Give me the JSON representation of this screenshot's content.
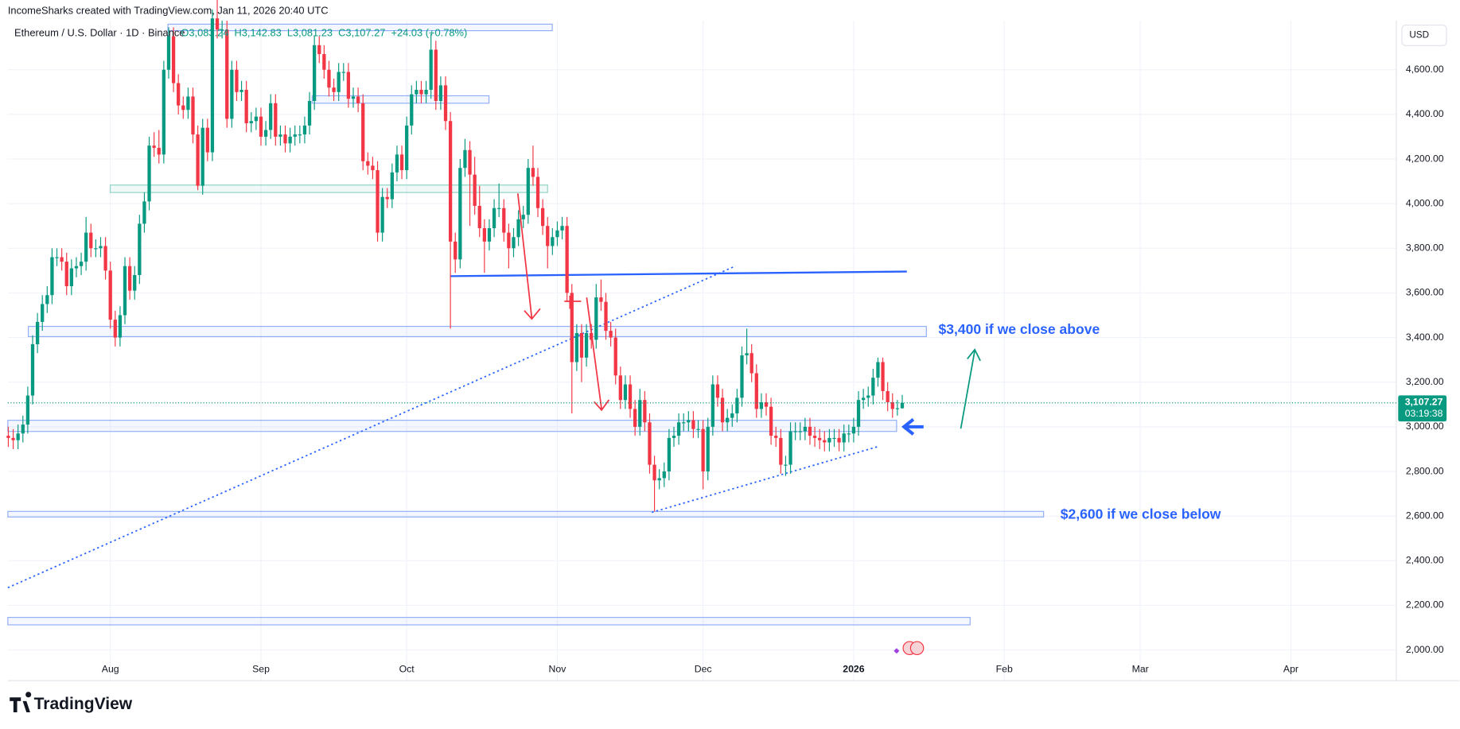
{
  "header": "IncomeSharks created with TradingView.com, Jan 11, 2026 20:40 UTC",
  "brand": "TradingView",
  "chart_data": {
    "type": "candlestick",
    "title": "Ethereum / U.S. Dollar · 1D · Binance",
    "legend_values": [
      "O3,083.24",
      "H3,142.83",
      "L3,081.23",
      "C3,107.27",
      "+24.03 (+0.78%)"
    ],
    "currency": "USD",
    "up_color": "#089981",
    "down_color": "#f23645",
    "open": [
      2960,
      2950,
      2940,
      2970,
      3010,
      3140,
      3370,
      3470,
      3550,
      3590,
      3760,
      3760,
      3740,
      3630,
      3710,
      3720,
      3740,
      3870,
      3800,
      3800,
      3810,
      3700,
      3480,
      3400,
      3500,
      3720,
      3610,
      3680,
      3910,
      4010,
      4260,
      4250,
      4220,
      4600,
      4750,
      4540,
      4440,
      4420,
      4480,
      4310,
      4080,
      4340,
      4230,
      4830,
      4780,
      4780,
      4380,
      4600,
      4500,
      4510,
      4360,
      4370,
      4390,
      4300,
      4330,
      4450,
      4300,
      4310,
      4270,
      4300,
      4310,
      4310,
      4350,
      4460,
      4710,
      4670,
      4600,
      4520,
      4500,
      4590,
      4590,
      4470,
      4480,
      4450,
      4190,
      4170,
      4150,
      3870,
      4030,
      4020,
      4140,
      4220,
      4150,
      4350,
      4490,
      4510,
      4490,
      4510,
      4690,
      4460,
      4530,
      4370,
      3830,
      3750,
      4160,
      4240,
      4130,
      3990,
      3890,
      3830,
      3890,
      3980,
      3980,
      3870,
      3800,
      3850,
      3930,
      3950,
      4160,
      4120,
      3980,
      3900,
      3810,
      3850,
      3880,
      3900,
      3600,
      3290,
      3420,
      3310,
      3420,
      3390,
      3580,
      3560,
      3430,
      3400,
      3230,
      3120,
      3190,
      3080,
      3000,
      3120,
      3020,
      2830,
      2760,
      2770,
      2800,
      2950,
      2960,
      3020,
      3020,
      3030,
      2990,
      2990,
      2800,
      3000,
      3190,
      3130,
      3020,
      3040,
      3060,
      3130,
      3320,
      3330,
      3240,
      3080,
      3110,
      3090,
      2960,
      2950,
      2830,
      2830,
      2980,
      2980,
      2980,
      3000,
      2960,
      2950,
      2940,
      2930,
      2950,
      2950,
      2930,
      2970,
      2970,
      3000,
      3120,
      3130,
      3140,
      3220,
      3290,
      3160,
      3110,
      3080,
      3083.24
    ],
    "high": [
      3000,
      2990,
      3010,
      3050,
      3180,
      3410,
      3510,
      3590,
      3630,
      3800,
      3800,
      3800,
      3780,
      3750,
      3760,
      3780,
      3940,
      3910,
      3840,
      3850,
      3850,
      3740,
      3520,
      3540,
      3760,
      3760,
      3720,
      3950,
      4050,
      4300,
      4320,
      4330,
      4640,
      4790,
      4790,
      4580,
      4480,
      4520,
      4520,
      4350,
      4380,
      4380,
      4870,
      4950,
      4820,
      4820,
      4640,
      4640,
      4550,
      4550,
      4410,
      4430,
      4430,
      4370,
      4490,
      4490,
      4350,
      4350,
      4340,
      4350,
      4350,
      4390,
      4500,
      4750,
      4750,
      4710,
      4640,
      4560,
      4630,
      4630,
      4630,
      4520,
      4520,
      4490,
      4230,
      4210,
      4190,
      4070,
      4070,
      4180,
      4260,
      4260,
      4390,
      4530,
      4550,
      4550,
      4550,
      4760,
      4730,
      4570,
      4570,
      4410,
      3870,
      4200,
      4290,
      4280,
      4210,
      4080,
      3930,
      3930,
      4020,
      4090,
      4020,
      3910,
      3890,
      3970,
      3990,
      4200,
      4260,
      4160,
      4020,
      3940,
      3890,
      3920,
      3940,
      3940,
      3640,
      3460,
      3460,
      3460,
      3460,
      3640,
      3660,
      3600,
      3470,
      3440,
      3270,
      3230,
      3230,
      3120,
      3170,
      3160,
      3060,
      2870,
      2810,
      2840,
      2990,
      3000,
      3060,
      3060,
      3070,
      3070,
      3030,
      3030,
      3040,
      3230,
      3230,
      3170,
      3080,
      3100,
      3170,
      3360,
      3440,
      3370,
      3280,
      3150,
      3150,
      3130,
      3000,
      2990,
      2870,
      3020,
      3020,
      3020,
      3040,
      3040,
      3000,
      2990,
      2980,
      2990,
      2990,
      2990,
      3010,
      3010,
      3040,
      3160,
      3170,
      3180,
      3260,
      3310,
      3310,
      3200,
      3150,
      3120,
      3142.83
    ],
    "low": [
      2910,
      2900,
      2900,
      2930,
      2970,
      3100,
      3330,
      3430,
      3510,
      3550,
      3720,
      3700,
      3590,
      3590,
      3670,
      3680,
      3700,
      3760,
      3760,
      3760,
      3660,
      3440,
      3360,
      3360,
      3460,
      3570,
      3570,
      3640,
      3870,
      3970,
      4210,
      4180,
      4180,
      4560,
      4500,
      4400,
      4380,
      4380,
      4270,
      4060,
      4040,
      4190,
      4190,
      4740,
      4740,
      4340,
      4340,
      4460,
      4460,
      4320,
      4320,
      4330,
      4260,
      4260,
      4290,
      4260,
      4260,
      4230,
      4230,
      4260,
      4270,
      4270,
      4310,
      4420,
      4630,
      4560,
      4480,
      4460,
      4460,
      4550,
      4430,
      4430,
      4410,
      4150,
      4130,
      4110,
      3830,
      3830,
      3980,
      3980,
      4100,
      4110,
      4110,
      4310,
      4450,
      4450,
      4450,
      4470,
      4420,
      4420,
      4330,
      3440,
      3690,
      3710,
      4120,
      3900,
      3950,
      3850,
      3690,
      3790,
      3850,
      3940,
      3830,
      3710,
      3760,
      3810,
      3890,
      3910,
      4080,
      3940,
      3860,
      3710,
      3770,
      3810,
      3840,
      3560,
      3060,
      3250,
      3200,
      3270,
      3350,
      3350,
      3520,
      3390,
      3360,
      3190,
      3080,
      3080,
      3040,
      2960,
      2960,
      2980,
      2790,
      2620,
      2720,
      2730,
      2760,
      2910,
      2920,
      2980,
      2980,
      2950,
      2950,
      2720,
      2760,
      2960,
      3090,
      2980,
      2980,
      3000,
      3020,
      3090,
      3280,
      3200,
      3040,
      3040,
      3050,
      2920,
      2910,
      2790,
      2780,
      2790,
      2940,
      2940,
      2940,
      2920,
      2910,
      2900,
      2890,
      2890,
      2910,
      2890,
      2890,
      2930,
      2930,
      2960,
      3080,
      3090,
      3100,
      3180,
      3120,
      3070,
      3040,
      3050,
      3081.23
    ],
    "close": [
      2950,
      2940,
      2970,
      3010,
      3140,
      3370,
      3470,
      3550,
      3590,
      3760,
      3760,
      3740,
      3630,
      3710,
      3720,
      3740,
      3870,
      3800,
      3800,
      3810,
      3700,
      3480,
      3400,
      3500,
      3720,
      3610,
      3680,
      3910,
      4010,
      4260,
      4250,
      4220,
      4600,
      4750,
      4540,
      4440,
      4420,
      4480,
      4310,
      4080,
      4340,
      4230,
      4830,
      4780,
      4780,
      4380,
      4600,
      4500,
      4510,
      4360,
      4370,
      4390,
      4300,
      4330,
      4450,
      4300,
      4310,
      4270,
      4300,
      4310,
      4310,
      4350,
      4460,
      4710,
      4670,
      4600,
      4520,
      4500,
      4590,
      4590,
      4470,
      4480,
      4450,
      4190,
      4170,
      4150,
      3870,
      4030,
      4020,
      4140,
      4220,
      4150,
      4350,
      4490,
      4510,
      4490,
      4510,
      4690,
      4460,
      4530,
      4370,
      3830,
      3750,
      4160,
      4240,
      4130,
      3990,
      3890,
      3830,
      3890,
      3980,
      3980,
      3870,
      3800,
      3850,
      3930,
      3950,
      4160,
      4120,
      3980,
      3900,
      3810,
      3850,
      3880,
      3900,
      3600,
      3290,
      3420,
      3310,
      3420,
      3390,
      3580,
      3560,
      3430,
      3400,
      3230,
      3120,
      3190,
      3080,
      3000,
      3120,
      3020,
      2830,
      2760,
      2770,
      2800,
      2950,
      2960,
      3020,
      3020,
      3030,
      2990,
      2990,
      2800,
      3000,
      3190,
      3130,
      3020,
      3040,
      3060,
      3130,
      3320,
      3330,
      3240,
      3080,
      3110,
      3090,
      2960,
      2950,
      2830,
      2830,
      2980,
      2980,
      2980,
      3000,
      2960,
      2950,
      2940,
      2930,
      2950,
      2950,
      2930,
      2970,
      2970,
      3000,
      3120,
      3130,
      3140,
      3220,
      3290,
      3160,
      3110,
      3080,
      3083.24,
      3107.27
    ],
    "last_price": {
      "value": 3107.27,
      "label": "3,107.27"
    },
    "countdown": "03:19:38",
    "xlim": [
      -0.1,
      285.7
    ],
    "xticks": [
      {
        "value": 21,
        "label": "Aug"
      },
      {
        "value": 52,
        "label": "Sep"
      },
      {
        "value": 82,
        "label": "Oct"
      },
      {
        "value": 113,
        "label": "Nov"
      },
      {
        "value": 143,
        "label": "Dec"
      },
      {
        "value": 174,
        "label": "2026"
      },
      {
        "value": 205,
        "label": "Feb"
      },
      {
        "value": 233,
        "label": "Mar"
      },
      {
        "value": 264,
        "label": "Apr"
      }
    ],
    "ylim": [
      1862.5,
      4820.8
    ],
    "yticks": [
      {
        "value": 2000,
        "label": "2,000.00"
      },
      {
        "value": 2200,
        "label": "2,200.00"
      },
      {
        "value": 2400,
        "label": "2,400.00"
      },
      {
        "value": 2600,
        "label": "2,600.00"
      },
      {
        "value": 2800,
        "label": "2,800.00"
      },
      {
        "value": 3000,
        "label": "3,000.00"
      },
      {
        "value": 3200,
        "label": "3,200.00"
      },
      {
        "value": 3400,
        "label": "3,400.00"
      },
      {
        "value": 3600,
        "label": "3,600.00"
      },
      {
        "value": 3800,
        "label": "3,800.00"
      },
      {
        "value": 4000,
        "label": "4,000.00"
      },
      {
        "value": 4200,
        "label": "4,200.00"
      },
      {
        "value": 4400,
        "label": "4,400.00"
      },
      {
        "value": 4600,
        "label": "4,600.00"
      }
    ],
    "grid": true,
    "annotations": [
      "$3,400 if we close above",
      "$2,600 if we close below"
    ]
  }
}
